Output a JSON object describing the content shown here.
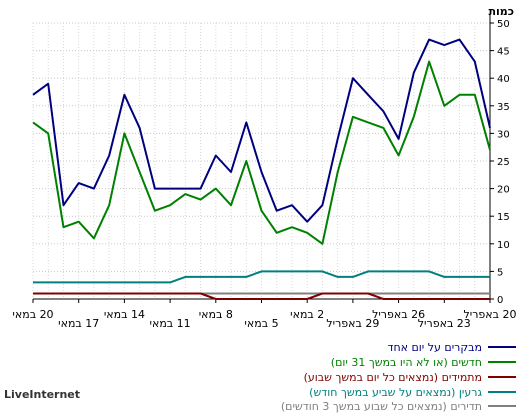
{
  "chart_data": {
    "type": "line",
    "ylabel": "כמות",
    "ylim": [
      0,
      50
    ],
    "yticks": [
      0,
      5,
      10,
      15,
      20,
      25,
      30,
      35,
      40,
      45,
      50
    ],
    "grid": true,
    "x": [
      "20 באפריל",
      "21 באפריל",
      "22 באפריל",
      "23 באפריל",
      "24 באפריל",
      "25 באפריל",
      "26 באפריל",
      "27 באפריל",
      "28 באפריל",
      "29 באפריל",
      "30 באפריל",
      "1 במאי",
      "2 במאי",
      "3 במאי",
      "4 במאי",
      "5 במאי",
      "6 במאי",
      "7 במאי",
      "8 במאי",
      "9 במאי",
      "10 במאי",
      "11 במאי",
      "12 במאי",
      "13 במאי",
      "14 במאי",
      "15 במאי",
      "16 במאי",
      "17 במאי",
      "18 במאי",
      "19 במאי",
      "20 במאי"
    ],
    "x_tick_labels": [
      {
        "label": "20 באפריל",
        "x": "20 באפריל"
      },
      {
        "label": "23 באפריל",
        "x": "23 באפריל"
      },
      {
        "label": "26 באפריל",
        "x": "26 באפריל"
      },
      {
        "label": "29 באפריל",
        "x": "29 באפריל"
      },
      {
        "label": "2 במאי",
        "x": "2 במאי"
      },
      {
        "label": "5 במאי",
        "x": "5 במאי"
      },
      {
        "label": "8 במאי",
        "x": "8 במאי"
      },
      {
        "label": "11 במאי",
        "x": "11 במאי"
      },
      {
        "label": "14 במאי",
        "x": "14 במאי"
      },
      {
        "label": "17 במאי",
        "x": "17 במאי"
      },
      {
        "label": "20 במאי",
        "x": "20 במאי"
      }
    ],
    "series": [
      {
        "name": "מבקרים על יום אחד",
        "color": "#000080",
        "values": [
          31,
          43,
          47,
          46,
          47,
          41,
          29,
          34,
          37,
          40,
          29,
          17,
          14,
          17,
          16,
          23,
          32,
          23,
          26,
          20,
          20,
          20,
          20,
          31,
          37,
          26,
          20,
          21,
          17,
          39,
          37
        ]
      },
      {
        "name": "חדשים (או לא היו במשך 31 יום)",
        "color": "#008000",
        "values": [
          27,
          37,
          37,
          35,
          43,
          33,
          26,
          31,
          32,
          33,
          23,
          10,
          12,
          13,
          12,
          16,
          25,
          17,
          20,
          18,
          19,
          17,
          16,
          23,
          30,
          17,
          11,
          14,
          13,
          30,
          32
        ]
      },
      {
        "name": "מתמידים (נמצאים כל יום במשך שבוע)",
        "color": "#800000",
        "values": [
          0,
          0,
          0,
          0,
          0,
          0,
          0,
          0,
          1,
          1,
          1,
          1,
          0,
          0,
          0,
          0,
          0,
          0,
          0,
          1,
          1,
          1,
          1,
          1,
          1,
          1,
          1,
          1,
          1,
          1,
          1
        ]
      },
      {
        "name": "גרעין (נמצאים על שביע במשך חודש)",
        "color": "#008080",
        "values": [
          4,
          4,
          4,
          4,
          5,
          5,
          5,
          5,
          5,
          4,
          4,
          5,
          5,
          5,
          5,
          5,
          4,
          4,
          4,
          4,
          4,
          3,
          3,
          3,
          3,
          3,
          3,
          3,
          3,
          3,
          3
        ]
      },
      {
        "name": "תדירים (נמצאים כל שבוע במשך 3 חודשים)",
        "color": "#808080",
        "values": [
          1,
          1,
          1,
          1,
          1,
          1,
          1,
          1,
          1,
          1,
          1,
          1,
          1,
          1,
          1,
          1,
          1,
          1,
          1,
          1,
          1,
          1,
          1,
          1,
          1,
          1,
          1,
          1,
          1,
          1,
          1
        ]
      }
    ]
  },
  "brand": "LiveInternet"
}
